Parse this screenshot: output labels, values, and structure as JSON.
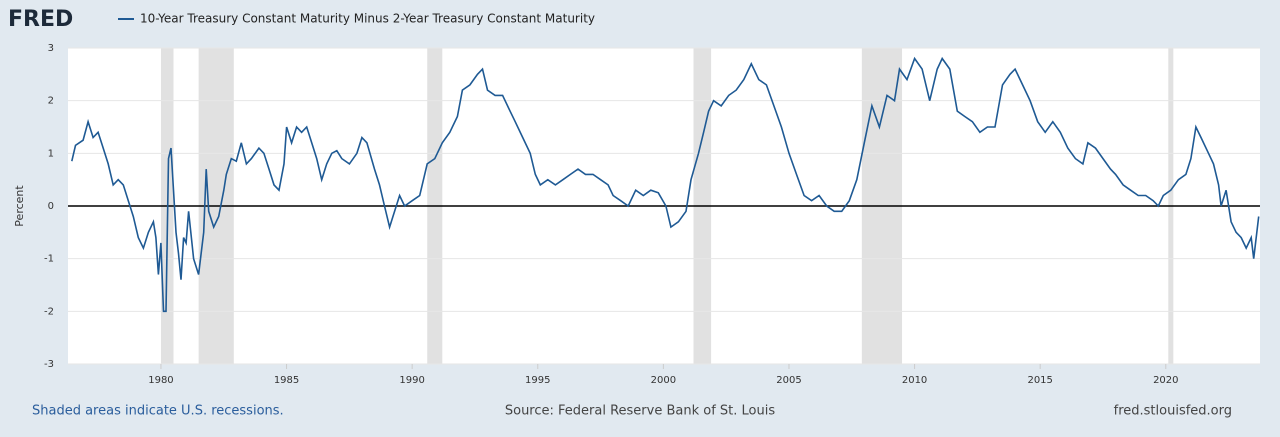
{
  "logo": "FRED",
  "footer": {
    "note": "Shaded areas indicate U.S. recessions.",
    "source": "Source: Federal Reserve Bank of St. Louis",
    "site": "fred.stlouisfed.org"
  },
  "chart_data": {
    "type": "line",
    "y_label": "Percent",
    "xlim": [
      1976.3,
      2023.75
    ],
    "ylim": [
      -3,
      3
    ],
    "xticks": [
      1980,
      1985,
      1990,
      1995,
      2000,
      2005,
      2010,
      2015,
      2020
    ],
    "yticks": [
      -3,
      -2,
      -1,
      0,
      1,
      2,
      3
    ],
    "grid": true,
    "recessions": [
      [
        1980.0,
        1980.5
      ],
      [
        1981.5,
        1982.9
      ],
      [
        1990.6,
        1991.2
      ],
      [
        2001.2,
        2001.9
      ],
      [
        2007.9,
        2009.5
      ],
      [
        2020.1,
        2020.3
      ]
    ],
    "recession_color": "#e1e1e1",
    "x": [
      1976.45,
      1976.6,
      1976.9,
      1977.1,
      1977.3,
      1977.5,
      1977.7,
      1977.9,
      1978.1,
      1978.3,
      1978.5,
      1978.7,
      1978.9,
      1979.1,
      1979.3,
      1979.5,
      1979.7,
      1979.8,
      1979.9,
      1980.0,
      1980.1,
      1980.2,
      1980.3,
      1980.4,
      1980.5,
      1980.6,
      1980.7,
      1980.8,
      1980.9,
      1981.0,
      1981.1,
      1981.3,
      1981.5,
      1981.7,
      1981.8,
      1981.9,
      1982.1,
      1982.3,
      1982.5,
      1982.6,
      1982.8,
      1983.0,
      1983.2,
      1983.4,
      1983.6,
      1983.9,
      1984.1,
      1984.3,
      1984.5,
      1984.7,
      1984.9,
      1985.0,
      1985.2,
      1985.4,
      1985.6,
      1985.8,
      1986.0,
      1986.2,
      1986.4,
      1986.6,
      1986.8,
      1987.0,
      1987.2,
      1987.5,
      1987.8,
      1988.0,
      1988.2,
      1988.5,
      1988.7,
      1988.9,
      1989.1,
      1989.3,
      1989.5,
      1989.7,
      1990.0,
      1990.3,
      1990.6,
      1990.9,
      1991.2,
      1991.5,
      1991.8,
      1992.0,
      1992.3,
      1992.6,
      1992.8,
      1993.0,
      1993.3,
      1993.6,
      1993.9,
      1994.1,
      1994.4,
      1994.7,
      1994.9,
      1995.1,
      1995.4,
      1995.7,
      1996.0,
      1996.3,
      1996.6,
      1996.9,
      1997.2,
      1997.5,
      1997.8,
      1998.0,
      1998.3,
      1998.6,
      1998.9,
      1999.2,
      1999.5,
      1999.8,
      2000.1,
      2000.3,
      2000.6,
      2000.9,
      2001.1,
      2001.4,
      2001.6,
      2001.8,
      2002.0,
      2002.3,
      2002.6,
      2002.9,
      2003.2,
      2003.5,
      2003.8,
      2004.1,
      2004.4,
      2004.7,
      2005.0,
      2005.3,
      2005.6,
      2005.9,
      2006.2,
      2006.5,
      2006.8,
      2007.1,
      2007.4,
      2007.7,
      2008.0,
      2008.3,
      2008.6,
      2008.9,
      2009.2,
      2009.4,
      2009.7,
      2010.0,
      2010.3,
      2010.6,
      2010.9,
      2011.1,
      2011.4,
      2011.7,
      2012.0,
      2012.3,
      2012.6,
      2012.9,
      2013.2,
      2013.5,
      2013.8,
      2014.0,
      2014.3,
      2014.6,
      2014.9,
      2015.2,
      2015.5,
      2015.8,
      2016.1,
      2016.4,
      2016.7,
      2016.9,
      2017.2,
      2017.5,
      2017.8,
      2018.0,
      2018.3,
      2018.6,
      2018.9,
      2019.2,
      2019.5,
      2019.7,
      2019.9,
      2020.2,
      2020.5,
      2020.8,
      2021.0,
      2021.2,
      2021.4,
      2021.7,
      2021.9,
      2022.1,
      2022.2,
      2022.4,
      2022.6,
      2022.8,
      2023.0,
      2023.2,
      2023.4,
      2023.5,
      2023.7
    ],
    "series": [
      {
        "name": "10-Year Treasury Constant Maturity Minus 2-Year Treasury Constant Maturity",
        "color": "#1f5a94",
        "values": [
          0.85,
          1.15,
          1.25,
          1.6,
          1.3,
          1.4,
          1.1,
          0.8,
          0.4,
          0.5,
          0.4,
          0.1,
          -0.2,
          -0.6,
          -0.8,
          -0.5,
          -0.3,
          -0.6,
          -1.3,
          -0.7,
          -2.0,
          -2.0,
          0.9,
          1.1,
          0.3,
          -0.5,
          -0.9,
          -1.4,
          -0.6,
          -0.7,
          -0.1,
          -1.0,
          -1.3,
          -0.5,
          0.7,
          -0.1,
          -0.4,
          -0.2,
          0.3,
          0.6,
          0.9,
          0.85,
          1.2,
          0.8,
          0.9,
          1.1,
          1.0,
          0.7,
          0.4,
          0.3,
          0.8,
          1.5,
          1.2,
          1.5,
          1.4,
          1.5,
          1.2,
          0.9,
          0.5,
          0.8,
          1.0,
          1.05,
          0.9,
          0.8,
          1.0,
          1.3,
          1.2,
          0.7,
          0.4,
          0.0,
          -0.4,
          -0.1,
          0.2,
          0.0,
          0.1,
          0.2,
          0.8,
          0.9,
          1.2,
          1.4,
          1.7,
          2.2,
          2.3,
          2.5,
          2.6,
          2.2,
          2.1,
          2.1,
          1.8,
          1.6,
          1.3,
          1.0,
          0.6,
          0.4,
          0.5,
          0.4,
          0.5,
          0.6,
          0.7,
          0.6,
          0.6,
          0.5,
          0.4,
          0.2,
          0.1,
          0.0,
          0.3,
          0.2,
          0.3,
          0.25,
          0.0,
          -0.4,
          -0.3,
          -0.1,
          0.5,
          1.0,
          1.4,
          1.8,
          2.0,
          1.9,
          2.1,
          2.2,
          2.4,
          2.7,
          2.4,
          2.3,
          1.9,
          1.5,
          1.0,
          0.6,
          0.2,
          0.1,
          0.2,
          0.0,
          -0.1,
          -0.1,
          0.1,
          0.5,
          1.2,
          1.9,
          1.5,
          2.1,
          2.0,
          2.6,
          2.4,
          2.8,
          2.6,
          2.0,
          2.6,
          2.8,
          2.6,
          1.8,
          1.7,
          1.6,
          1.4,
          1.5,
          1.5,
          2.3,
          2.5,
          2.6,
          2.3,
          2.0,
          1.6,
          1.4,
          1.6,
          1.4,
          1.1,
          0.9,
          0.8,
          1.2,
          1.1,
          0.9,
          0.7,
          0.6,
          0.4,
          0.3,
          0.2,
          0.2,
          0.1,
          0.0,
          0.2,
          0.3,
          0.5,
          0.6,
          0.9,
          1.5,
          1.3,
          1.0,
          0.8,
          0.4,
          0.0,
          0.3,
          -0.3,
          -0.5,
          -0.6,
          -0.8,
          -0.6,
          -1.0,
          -0.2
        ]
      }
    ]
  }
}
